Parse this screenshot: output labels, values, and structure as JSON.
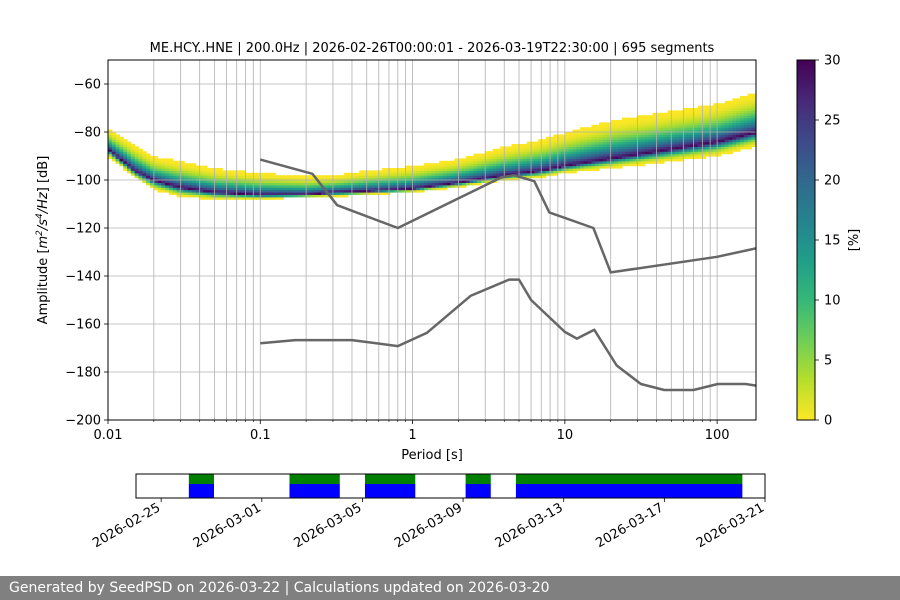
{
  "chart_data": [
    {
      "type": "heatmap",
      "title": "ME.HCY..HNE | 200.0Hz | 2026-02-26T00:00:01 - 2026-03-19T22:30:00 | 695 segments",
      "xlabel": "Period [s]",
      "ylabel_parts": [
        "Amplitude [",
        "m",
        "2",
        "/s",
        "4",
        "/Hz",
        "] [dB]"
      ],
      "xscale": "log",
      "xlim": [
        0.01,
        180
      ],
      "ylim": [
        -200,
        -50
      ],
      "xticks": [
        {
          "v": 0.01,
          "label": "0.01"
        },
        {
          "v": 0.1,
          "label": "0.1"
        },
        {
          "v": 1,
          "label": "1"
        },
        {
          "v": 10,
          "label": "10"
        },
        {
          "v": 100,
          "label": "100"
        }
      ],
      "yticks": [
        {
          "v": -60,
          "label": "−60"
        },
        {
          "v": -80,
          "label": "−80"
        },
        {
          "v": -100,
          "label": "−100"
        },
        {
          "v": -120,
          "label": "−120"
        },
        {
          "v": -140,
          "label": "−140"
        },
        {
          "v": -160,
          "label": "−160"
        },
        {
          "v": -180,
          "label": "−180"
        },
        {
          "v": -200,
          "label": "−200"
        }
      ],
      "grid": true,
      "colorbar": {
        "label": "[%]",
        "range": [
          0,
          30
        ],
        "ticks": [
          {
            "v": 0,
            "label": "0"
          },
          {
            "v": 5,
            "label": "5"
          },
          {
            "v": 10,
            "label": "10"
          },
          {
            "v": 15,
            "label": "15"
          },
          {
            "v": 20,
            "label": "20"
          },
          {
            "v": 25,
            "label": "25"
          },
          {
            "v": 30,
            "label": "30"
          }
        ],
        "colormap": [
          "#fde725",
          "#b5de2b",
          "#6ece58",
          "#35b779",
          "#1f9e89",
          "#26828e",
          "#31688e",
          "#3e4989",
          "#482878",
          "#440154"
        ]
      },
      "band": [
        {
          "x": 0.01,
          "center": -87,
          "top": -78,
          "bottom": -90
        },
        {
          "x": 0.015,
          "center": -96,
          "top": -85,
          "bottom": -99
        },
        {
          "x": 0.02,
          "center": -100,
          "top": -90,
          "bottom": -104
        },
        {
          "x": 0.03,
          "center": -103,
          "top": -92,
          "bottom": -107
        },
        {
          "x": 0.05,
          "center": -105,
          "top": -95,
          "bottom": -108
        },
        {
          "x": 0.1,
          "center": -106,
          "top": -97,
          "bottom": -108
        },
        {
          "x": 0.2,
          "center": -106,
          "top": -98,
          "bottom": -107
        },
        {
          "x": 0.3,
          "center": -105,
          "top": -98,
          "bottom": -107
        },
        {
          "x": 0.5,
          "center": -104.5,
          "top": -96,
          "bottom": -106
        },
        {
          "x": 1,
          "center": -103.5,
          "top": -94,
          "bottom": -105
        },
        {
          "x": 2,
          "center": -101,
          "top": -91,
          "bottom": -103
        },
        {
          "x": 4,
          "center": -98,
          "top": -86,
          "bottom": -100
        },
        {
          "x": 7,
          "center": -96,
          "top": -83,
          "bottom": -99
        },
        {
          "x": 10,
          "center": -94,
          "top": -80,
          "bottom": -97
        },
        {
          "x": 20,
          "center": -91,
          "top": -75,
          "bottom": -95
        },
        {
          "x": 40,
          "center": -88,
          "top": -72,
          "bottom": -93
        },
        {
          "x": 100,
          "center": -84,
          "top": -68,
          "bottom": -90
        },
        {
          "x": 180,
          "center": -80,
          "top": -63,
          "bottom": -86
        }
      ],
      "series": [
        {
          "x": [
            0.1,
            0.22,
            0.32,
            0.8,
            3.8,
            4.6,
            6.3,
            7.9,
            15.4,
            20,
            100,
            180
          ],
          "y": [
            -91.5,
            -97.4,
            -110.5,
            -120,
            -99,
            -98,
            -100.5,
            -113.5,
            -120,
            -138.5,
            -132,
            -128.5
          ],
          "color": "#666666"
        },
        {
          "x": [
            0.1,
            0.17,
            0.4,
            0.8,
            1.24,
            2.4,
            4.3,
            5.0,
            6.0,
            10,
            12,
            15.6,
            21.9,
            31.6,
            45,
            70,
            101,
            154,
            180
          ],
          "y": [
            -168,
            -166.7,
            -166.7,
            -169.2,
            -163.7,
            -148.3,
            -141.5,
            -141.5,
            -150,
            -163.3,
            -166.1,
            -162.4,
            -177.3,
            -185,
            -187.5,
            -187.5,
            -185,
            -185,
            -185.7
          ]
        }
      ]
    },
    {
      "type": "timeline",
      "xlim": [
        "2026-02-24",
        "2026-03-21"
      ],
      "xticks": [
        "2026-02-25",
        "2026-03-01",
        "2026-03-05",
        "2026-03-09",
        "2026-03-13",
        "2026-03-17",
        "2026-03-21"
      ],
      "segments": [
        {
          "start": 2.1,
          "end": 3.1
        },
        {
          "start": 6.1,
          "end": 8.1
        },
        {
          "start": 9.1,
          "end": 11.1
        },
        {
          "start": 13.1,
          "end": 14.1
        },
        {
          "start": 15.1,
          "end": 24.1
        }
      ],
      "colors": {
        "top": "#008000",
        "bottom": "#0000ff"
      }
    }
  ],
  "footer": {
    "text": "Generated by SeedPSD on 2026-03-22 | Calculations updated on 2026-03-20"
  }
}
